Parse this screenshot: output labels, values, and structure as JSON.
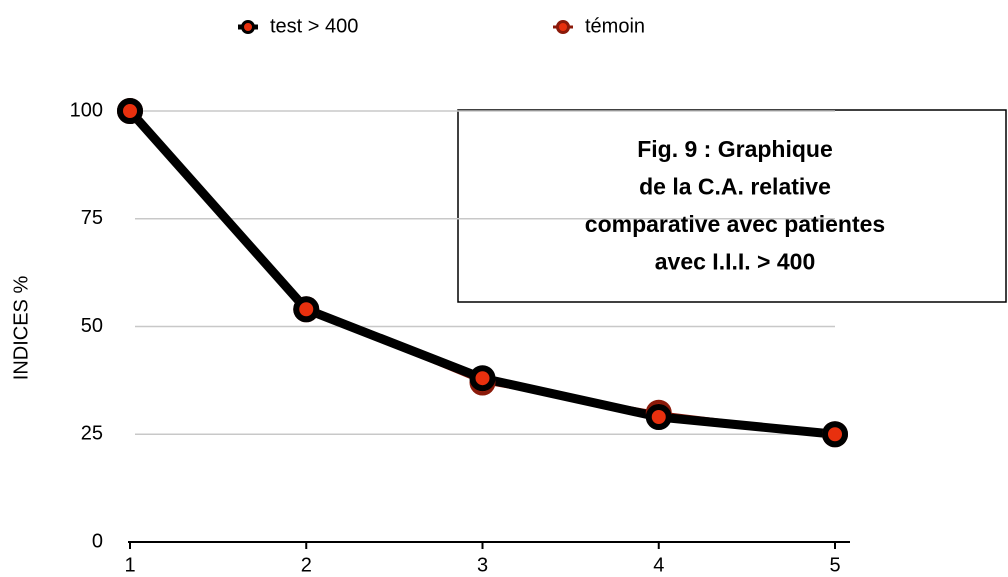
{
  "chart_data": {
    "type": "line",
    "x": [
      1,
      2,
      3,
      4,
      5
    ],
    "xlim": [
      1,
      5
    ],
    "xticks": [
      1,
      2,
      3,
      4,
      5
    ],
    "ylim": [
      0,
      100
    ],
    "yticks": [
      0,
      25,
      50,
      75,
      100
    ],
    "ylabel": "INDICES %",
    "grid": true,
    "legend": "top",
    "annotation": [
      "Fig. 9 : Graphique",
      "de la C.A. relative",
      "comparative avec patientes",
      "avec I.I.I. > 400"
    ],
    "series": [
      {
        "name": "test > 400",
        "color": "#000000",
        "marker_color": "#e8300e",
        "values": [
          100,
          54,
          38,
          29,
          25
        ]
      },
      {
        "name": "témoin",
        "color": "#8b1a0a",
        "marker_color": "#e8300e",
        "values": [
          100,
          54,
          37,
          30,
          25
        ]
      }
    ]
  }
}
